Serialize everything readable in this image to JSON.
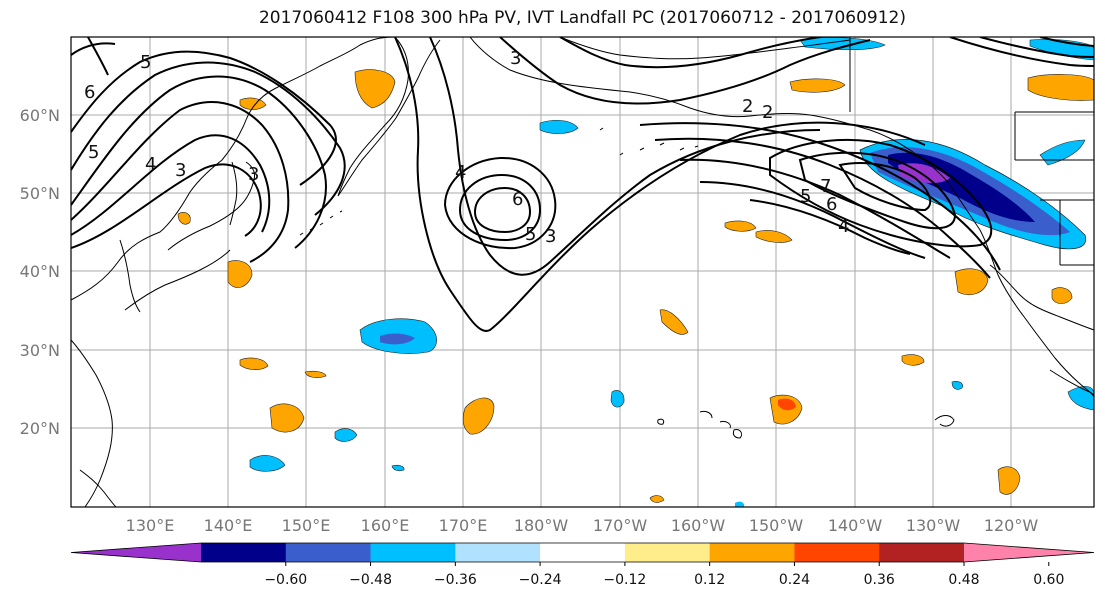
{
  "title": "2017060412 F108 300 hPa PV, IVT Landfall PC (2017060712 - 2017060912)",
  "map": {
    "lat_labels": [
      "60°N",
      "50°N",
      "40°N",
      "30°N",
      "20°N"
    ],
    "lon_labels": [
      "130°E",
      "140°E",
      "150°E",
      "160°E",
      "170°E",
      "180°W",
      "170°W",
      "160°W",
      "150°W",
      "140°W",
      "130°W",
      "120°W"
    ],
    "contour_labels": [
      "5",
      "6",
      "5",
      "4",
      "3",
      "3",
      "2",
      "3",
      "4",
      "6",
      "5",
      "3",
      "2",
      "7",
      "5",
      "6",
      "4"
    ]
  },
  "colorbar": {
    "ticks": [
      "−0.60",
      "−0.48",
      "−0.36",
      "−0.24",
      "−0.12",
      "0.12",
      "0.24",
      "0.36",
      "0.48",
      "0.60"
    ],
    "colors": [
      "#9932cc",
      "#00008b",
      "#3a5fcd",
      "#00bfff",
      "#b0e2ff",
      "#ffffff",
      "#ffec8b",
      "#ffa500",
      "#ff4500",
      "#b22222",
      "#ff82ab"
    ]
  }
}
